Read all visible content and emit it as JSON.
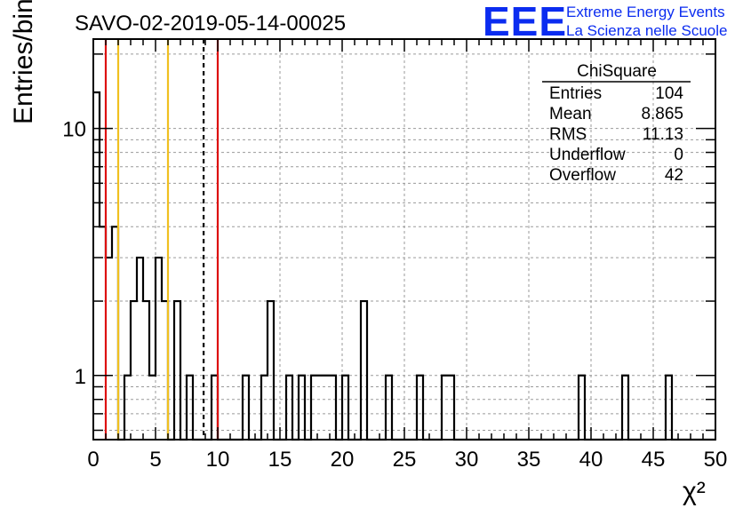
{
  "chart_data": {
    "type": "histogram",
    "title": "SAVO-02-2019-05-14-00025",
    "xlabel": "χ²",
    "ylabel": "Entries/bin",
    "xlim": [
      0,
      50
    ],
    "ylim": [
      0.55,
      23
    ],
    "yscale": "log",
    "grid": true,
    "bin_width": 0.5,
    "x_ticks": [
      0,
      5,
      10,
      15,
      20,
      25,
      30,
      35,
      40,
      45,
      50
    ],
    "y_ticks": [
      1,
      10
    ],
    "bins": [
      {
        "x0": 0.0,
        "y": 14
      },
      {
        "x0": 0.5,
        "y": 4
      },
      {
        "x0": 1.0,
        "y": 3
      },
      {
        "x0": 1.5,
        "y": 4
      },
      {
        "x0": 2.0,
        "y": 0
      },
      {
        "x0": 2.5,
        "y": 1
      },
      {
        "x0": 3.0,
        "y": 2
      },
      {
        "x0": 3.5,
        "y": 3
      },
      {
        "x0": 4.0,
        "y": 2
      },
      {
        "x0": 4.5,
        "y": 1
      },
      {
        "x0": 5.0,
        "y": 3
      },
      {
        "x0": 5.5,
        "y": 2
      },
      {
        "x0": 6.0,
        "y": 0
      },
      {
        "x0": 6.5,
        "y": 2
      },
      {
        "x0": 7.0,
        "y": 0
      },
      {
        "x0": 7.5,
        "y": 1
      },
      {
        "x0": 8.0,
        "y": 0
      },
      {
        "x0": 8.5,
        "y": 0
      },
      {
        "x0": 9.5,
        "y": 1
      },
      {
        "x0": 12.0,
        "y": 1
      },
      {
        "x0": 13.5,
        "y": 1
      },
      {
        "x0": 14.0,
        "y": 2
      },
      {
        "x0": 15.5,
        "y": 1
      },
      {
        "x0": 16.5,
        "y": 1
      },
      {
        "x0": 17.5,
        "y": 1
      },
      {
        "x0": 18.0,
        "y": 1
      },
      {
        "x0": 18.5,
        "y": 1
      },
      {
        "x0": 19.0,
        "y": 1
      },
      {
        "x0": 20.0,
        "y": 1
      },
      {
        "x0": 21.5,
        "y": 2
      },
      {
        "x0": 23.5,
        "y": 1
      },
      {
        "x0": 26.0,
        "y": 1
      },
      {
        "x0": 28.0,
        "y": 1
      },
      {
        "x0": 28.5,
        "y": 1
      },
      {
        "x0": 39.0,
        "y": 1
      },
      {
        "x0": 42.5,
        "y": 1
      },
      {
        "x0": 46.0,
        "y": 1
      }
    ],
    "vertical_lines": [
      {
        "x": 1.0,
        "color": "#dd1111",
        "style": "solid"
      },
      {
        "x": 2.0,
        "color": "#f0c020",
        "style": "solid"
      },
      {
        "x": 6.0,
        "color": "#f0c020",
        "style": "solid"
      },
      {
        "x": 8.865,
        "color": "#000000",
        "style": "dashed"
      },
      {
        "x": 10.0,
        "color": "#dd1111",
        "style": "solid"
      }
    ],
    "stats_box": {
      "name": "ChiSquare",
      "rows": [
        {
          "label": "Entries",
          "value": "104"
        },
        {
          "label": "Mean",
          "value": "8.865"
        },
        {
          "label": "RMS",
          "value": "11.13"
        },
        {
          "label": "Underflow",
          "value": "0"
        },
        {
          "label": "Overflow",
          "value": "42"
        }
      ]
    }
  },
  "logo": {
    "mark": "EEE",
    "line1": "Extreme Energy Events",
    "line2": "La Scienza nelle Scuole",
    "color": "#0b2cf0"
  }
}
